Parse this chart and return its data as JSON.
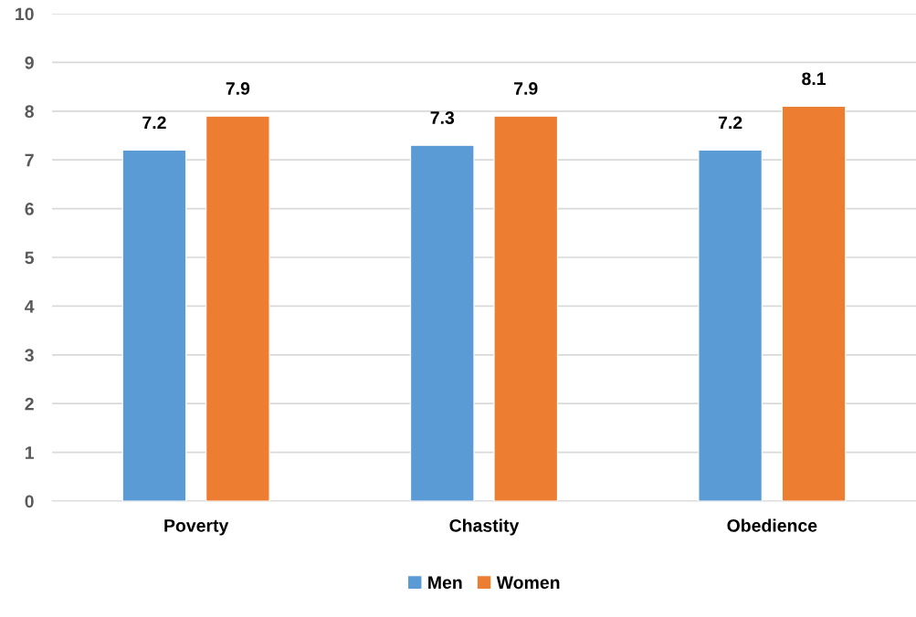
{
  "chart_data": {
    "type": "bar",
    "categories": [
      "Poverty",
      "Chastity",
      "Obedience"
    ],
    "series": [
      {
        "name": "Men",
        "color": "#5b9bd5",
        "values": [
          7.2,
          7.3,
          7.2
        ]
      },
      {
        "name": "Women",
        "color": "#ed7d31",
        "values": [
          7.9,
          7.9,
          8.1
        ]
      }
    ],
    "data_labels": true,
    "ylim": [
      0,
      10
    ],
    "yticks": [
      0,
      1,
      2,
      3,
      4,
      5,
      6,
      7,
      8,
      9,
      10
    ],
    "grid": "y",
    "legend": "bottom"
  }
}
